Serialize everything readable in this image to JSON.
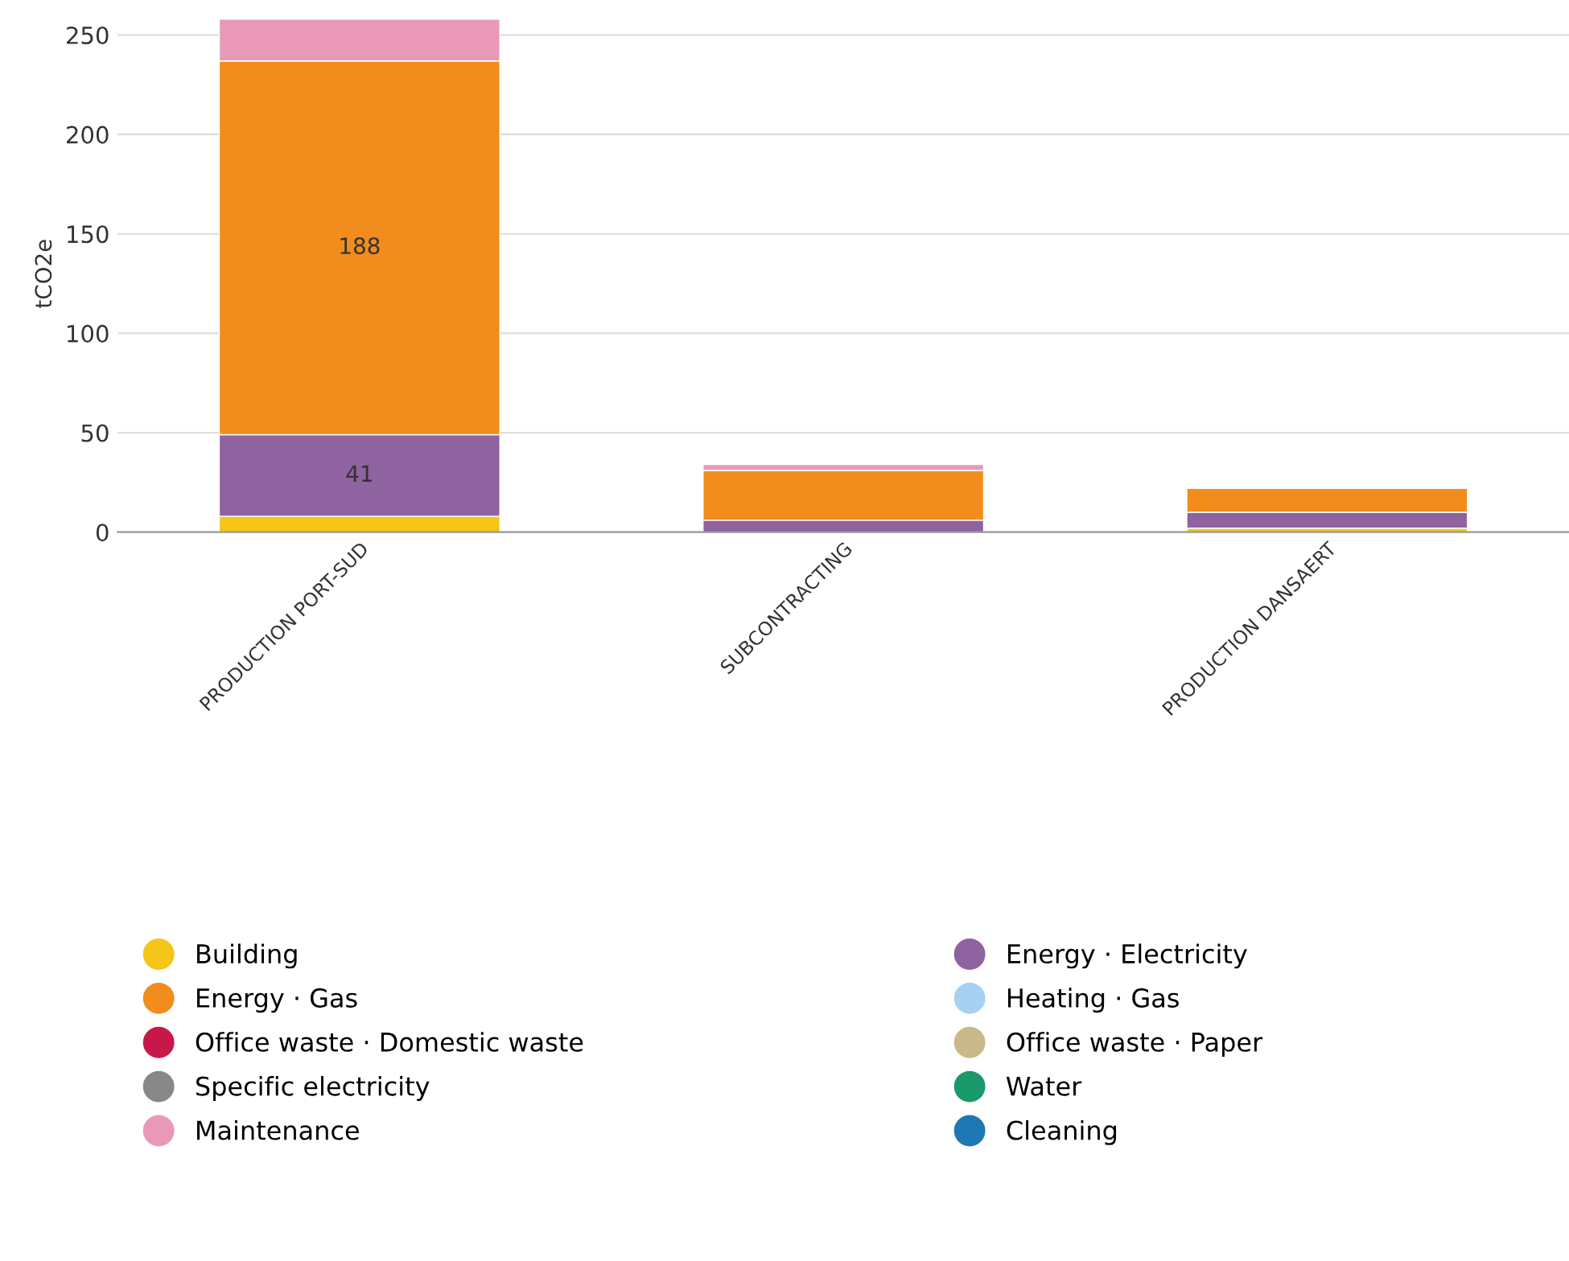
{
  "chart_data": {
    "type": "bar",
    "stacked": true,
    "ylabel": "tCO2e",
    "categories": [
      "PRODUCTION PORT-SUD",
      "SUBCONTRACTING",
      "PRODUCTION DANSAERT"
    ],
    "ylim": [
      0,
      260
    ],
    "yticks": [
      0,
      50,
      100,
      150,
      200,
      250
    ],
    "grid": "y",
    "legend": "bottom",
    "marker": "circle",
    "series": [
      {
        "name": "Building",
        "color": "#f5c518",
        "values": [
          8,
          null,
          2
        ]
      },
      {
        "name": "Energy · Electricity",
        "color": "#8f62a0",
        "values": [
          41,
          6,
          8
        ],
        "value_labels": [
          "41",
          null,
          null
        ]
      },
      {
        "name": "Energy · Gas",
        "color": "#f28c1c",
        "values": [
          188,
          25,
          12
        ],
        "value_labels": [
          "188",
          null,
          null
        ]
      },
      {
        "name": "Heating · Gas",
        "color": "#a8d0f0",
        "values": [
          null,
          null,
          null
        ]
      },
      {
        "name": "Office waste · Domestic waste",
        "color": "#c8184a",
        "values": [
          null,
          null,
          null
        ]
      },
      {
        "name": "Office waste · Paper",
        "color": "#c8b98a",
        "values": [
          null,
          null,
          null
        ]
      },
      {
        "name": "Specific electricity",
        "color": "#888888",
        "values": [
          null,
          null,
          null
        ]
      },
      {
        "name": "Water",
        "color": "#1a9a6a",
        "values": [
          null,
          null,
          null
        ]
      },
      {
        "name": "Maintenance",
        "color": "#e899b8",
        "values": [
          21,
          3,
          null
        ]
      },
      {
        "name": "Cleaning",
        "color": "#1f77b4",
        "values": [
          null,
          null,
          null
        ]
      }
    ]
  }
}
